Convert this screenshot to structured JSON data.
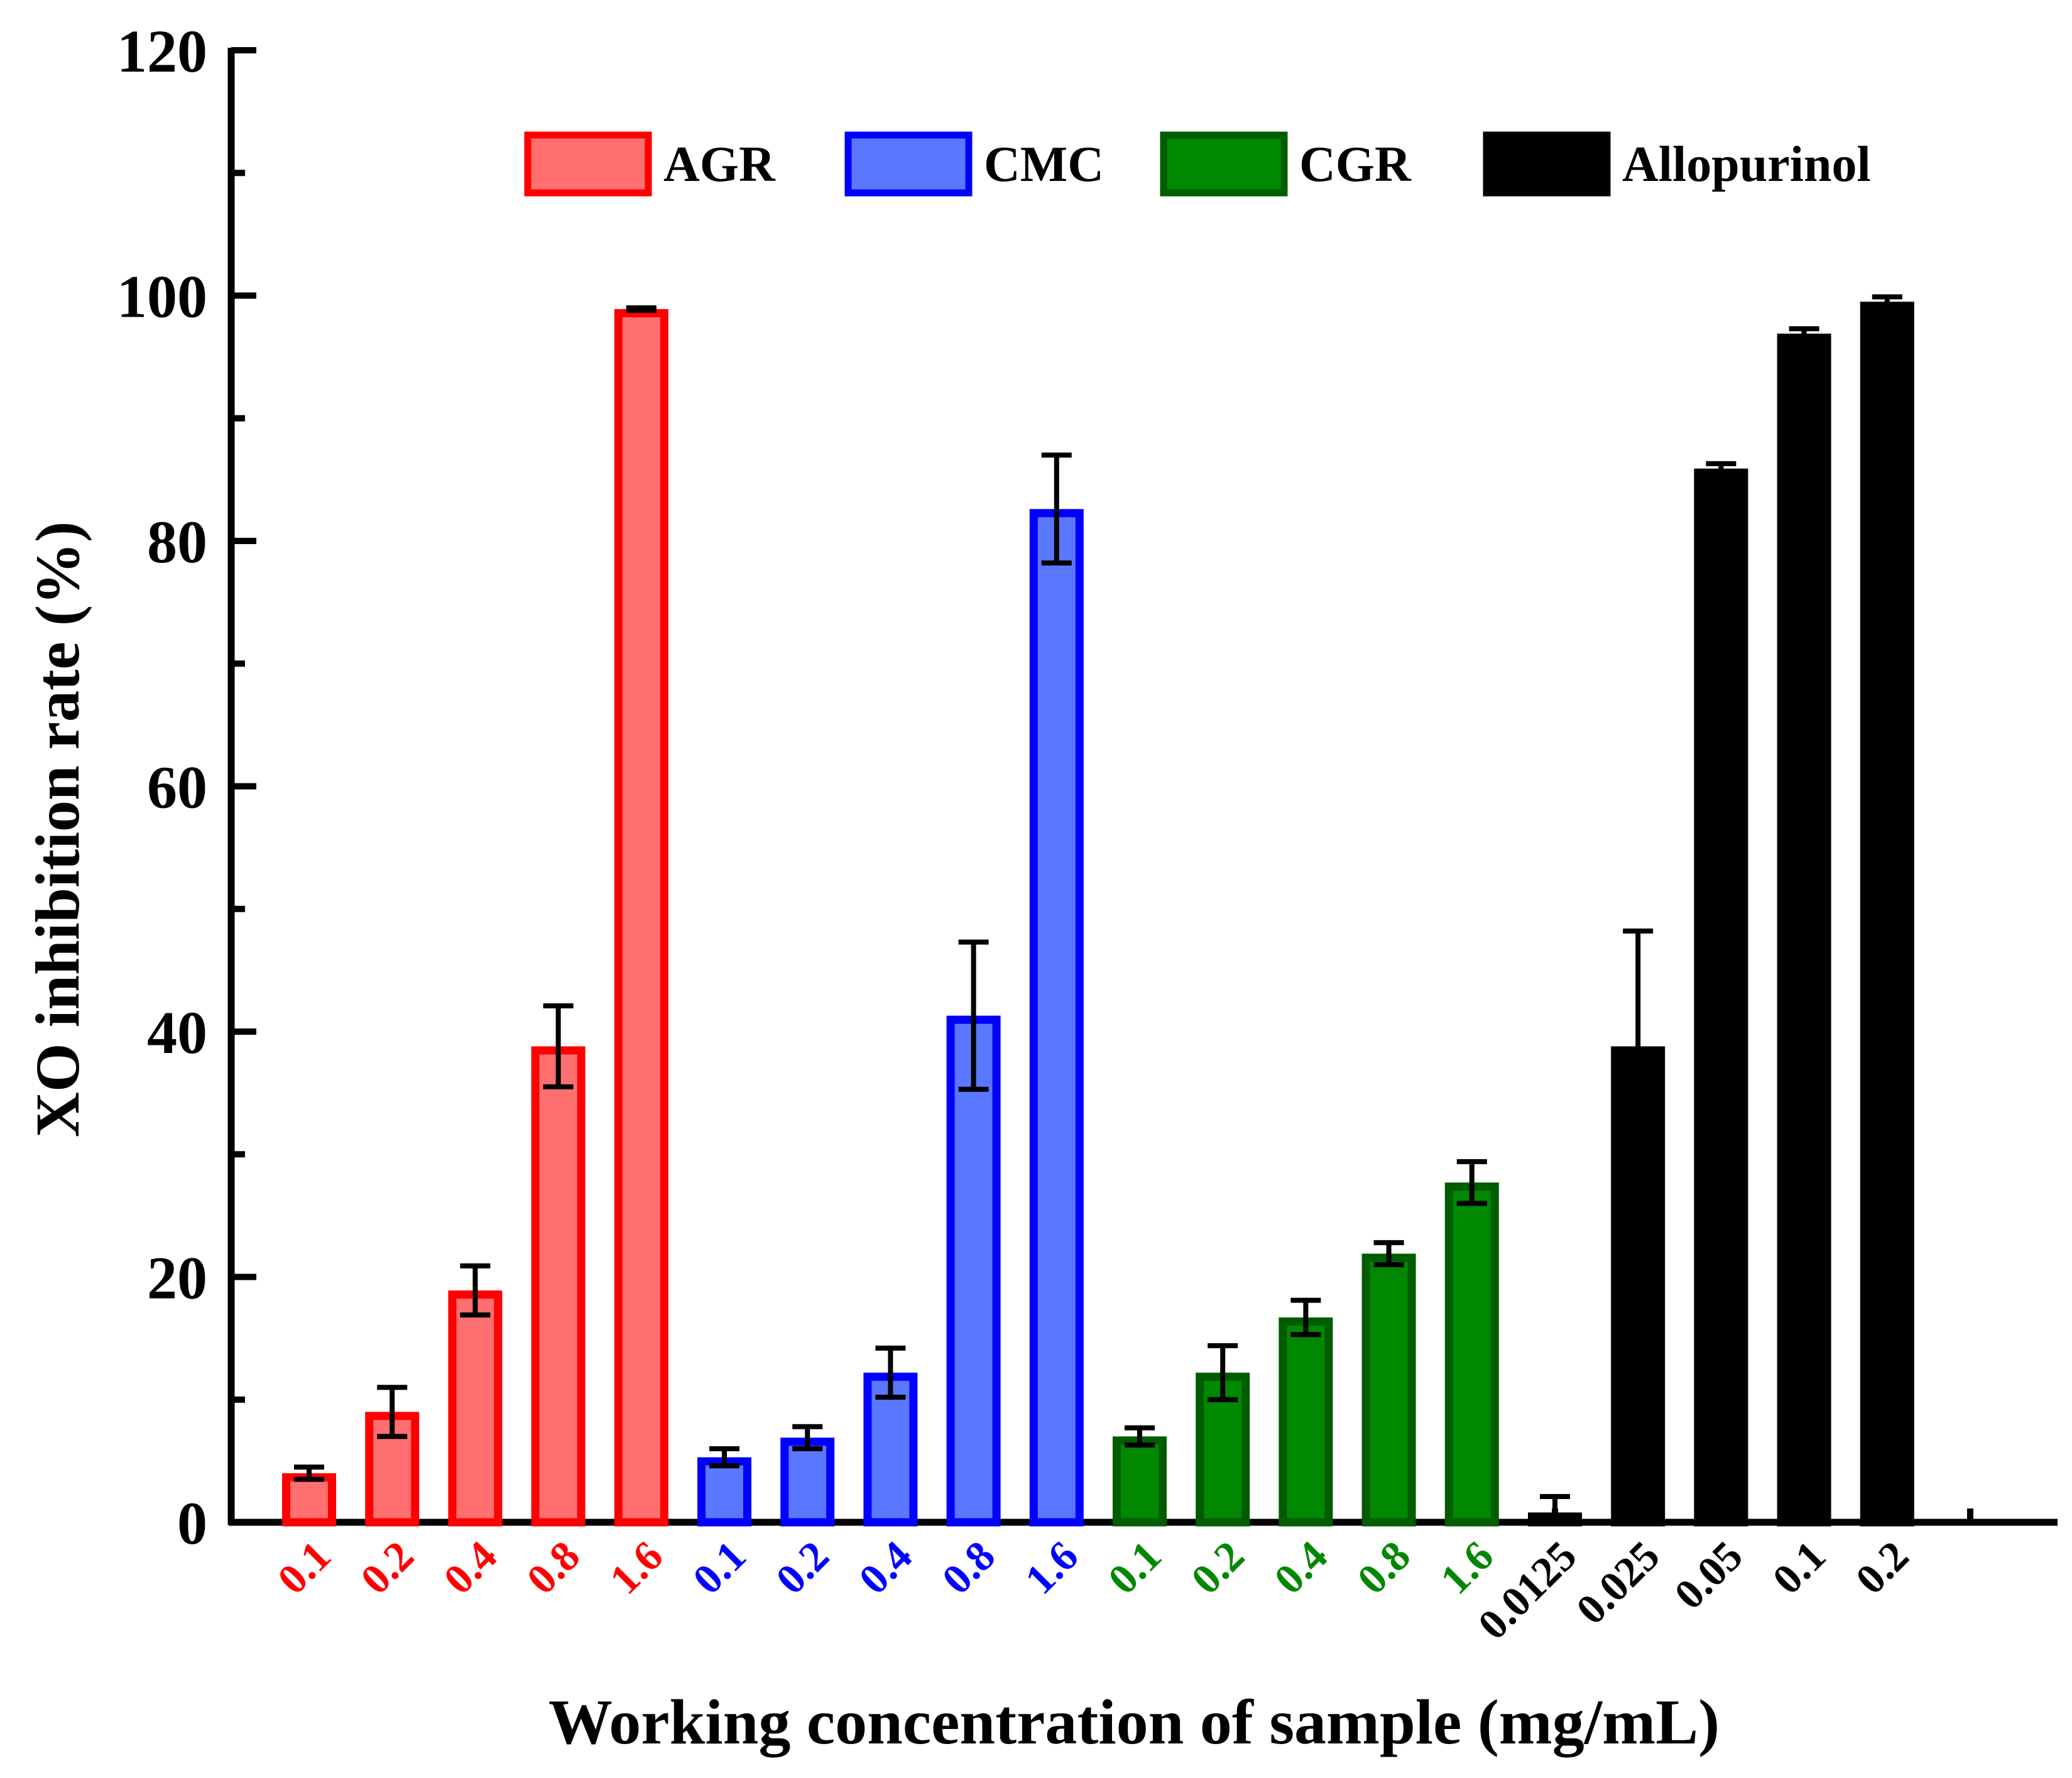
{
  "chart_data": {
    "type": "bar",
    "ylabel": "XO inhibition rate (%)",
    "xlabel": "Working concentration of sample (mg/mL)",
    "ylim": [
      0,
      120
    ],
    "yticks": [
      0,
      20,
      40,
      60,
      80,
      100,
      120
    ],
    "grid": false,
    "legend_position": "top",
    "series": [
      {
        "name": "AGR",
        "fill": "#ff6f6f",
        "edge": "#ff0000",
        "label_color": "#ff0000",
        "categories": [
          "0.1",
          "0.2",
          "0.4",
          "0.8",
          "1.6"
        ],
        "values": [
          4.0,
          9.0,
          18.9,
          38.8,
          98.9
        ],
        "errors": [
          0.5,
          2.0,
          2.0,
          3.3,
          0.1
        ]
      },
      {
        "name": "CMC",
        "fill": "#5a78ff",
        "edge": "#0000ff",
        "label_color": "#0000ff",
        "categories": [
          "0.1",
          "0.2",
          "0.4",
          "0.8",
          "1.6"
        ],
        "values": [
          5.3,
          6.9,
          12.2,
          41.3,
          82.6
        ],
        "errors": [
          0.7,
          0.9,
          2.0,
          6.0,
          4.4
        ]
      },
      {
        "name": "CGR",
        "fill": "#008800",
        "edge": "#005c00",
        "label_color": "#008800",
        "categories": [
          "0.1",
          "0.2",
          "0.4",
          "0.8",
          "1.6"
        ],
        "values": [
          7.0,
          12.2,
          16.7,
          21.9,
          27.7
        ],
        "errors": [
          0.7,
          2.2,
          1.4,
          0.9,
          1.7
        ]
      },
      {
        "name": "Allopurinol",
        "fill": "#000000",
        "edge": "#000000",
        "label_color": "#000000",
        "categories": [
          "0.0125",
          "0.025",
          "0.05",
          "0.1",
          "0.2"
        ],
        "values": [
          0.8,
          38.8,
          85.9,
          96.9,
          99.5
        ],
        "errors": [
          1.3,
          9.4,
          0.4,
          0.4,
          0.4
        ]
      }
    ]
  }
}
